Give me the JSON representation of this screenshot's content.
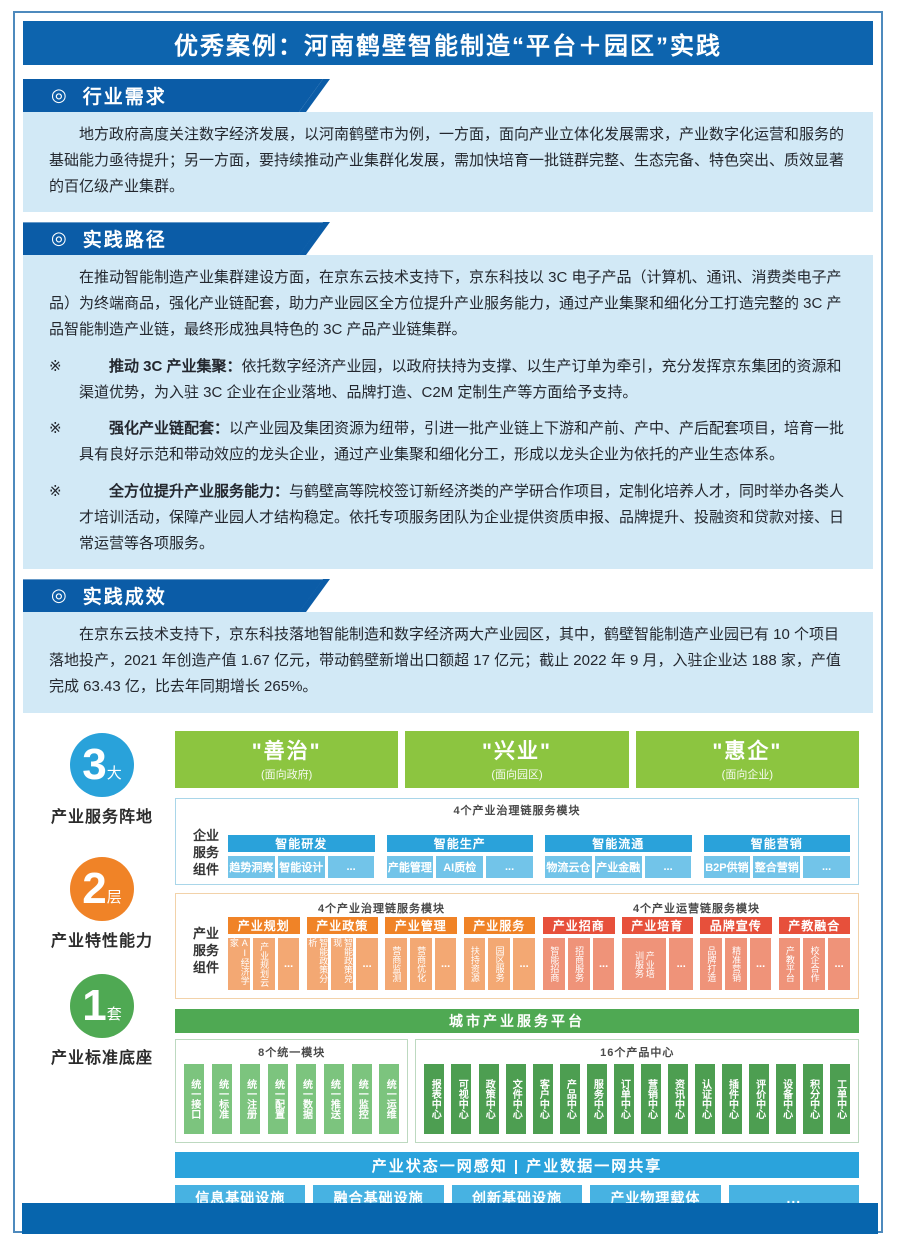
{
  "page": {
    "title": "优秀案例：河南鹤壁智能制造“平台＋园区”实践"
  },
  "ui": {
    "section_icon": "◎",
    "bullet_mark": "※"
  },
  "colors": {
    "banner_blue": "#0d64ae",
    "tab_blue": "#0b5ca7",
    "panel_light_blue": "#d2e9f6",
    "green_pillar": "#8cc540",
    "blue_header": "#2aa2da",
    "blue_item": "#72c4e9",
    "orange_header": "#f08327",
    "orange_item": "#f3a873",
    "red_header": "#e7503b",
    "red_item": "#ef9379",
    "platform_green": "#4fa953",
    "module_green_light": "#7cc47e",
    "module_green_dark": "#4d9e51",
    "network_blue": "#2aa3dc",
    "infra_blue": "#47b2e2",
    "footer_blue": "#0765ad"
  },
  "sections": [
    {
      "heading": "行业需求",
      "paragraphs": [
        "地方政府高度关注数字经济发展，以河南鹤壁市为例，一方面，面向产业立体化发展需求，产业数字化运营和服务的基础能力亟待提升；另一方面，要持续推动产业集群化发展，需加快培育一批链群完整、生态完备、特色突出、质效显著的百亿级产业集群。"
      ]
    },
    {
      "heading": "实践路径",
      "intro": "在推动智能制造产业集群建设方面，在京东云技术支持下，京东科技以 3C 电子产品（计算机、通讯、消费类电子产品）为终端商品，强化产业链配套，助力产业园区全方位提升产业服务能力，通过产业集聚和细化分工打造完整的 3C 产品智能制造产业链，最终形成独具特色的 3C 产品产业链集群。",
      "bullets": [
        {
          "lead": "推动 3C 产业集聚：",
          "text": "依托数字经济产业园，以政府扶持为支撑、以生产订单为牵引，充分发挥京东集团的资源和渠道优势，为入驻 3C 企业在企业落地、品牌打造、C2M 定制生产等方面给予支持。"
        },
        {
          "lead": "强化产业链配套：",
          "text": "以产业园及集团资源为纽带，引进一批产业链上下游和产前、产中、产后配套项目，培育一批具有良好示范和带动效应的龙头企业，通过产业集聚和细化分工，形成以龙头企业为依托的产业生态体系。"
        },
        {
          "lead": "全方位提升产业服务能力：",
          "text": "与鹤壁高等院校签订新经济类的产学研合作项目，定制化培养人才，同时举办各类人才培训活动，保障产业园人才结构稳定。依托专项服务团队为企业提供资质申报、品牌提升、投融资和贷款对接、日常运营等各项服务。"
        }
      ]
    },
    {
      "heading": "实践成效",
      "paragraphs": [
        "在京东云技术支持下，京东科技落地智能制造和数字经济两大产业园区，其中，鹤壁智能制造产业园已有 10 个项目落地投产，2021 年创造产值 1.67 亿元，带动鹤壁新增出口额超 17 亿元；截止 2022 年 9 月，入驻企业达 188 家，产值完成 63.43 亿，比去年同期增长 265%。"
      ]
    }
  ],
  "diagram": {
    "badges": [
      {
        "number": "3",
        "unit": "大",
        "label": "产业服务阵地",
        "color": "#29a2da"
      },
      {
        "number": "2",
        "unit": "层",
        "label": "产业特性能力",
        "color": "#f08327"
      },
      {
        "number": "1",
        "unit": "套",
        "label": "产业标准底座",
        "color": "#4fa953"
      }
    ],
    "top_boxes": [
      {
        "title": "\"善治\"",
        "subtitle": "(面向政府)"
      },
      {
        "title": "\"兴业\"",
        "subtitle": "(面向园区)"
      },
      {
        "title": "\"惠企\"",
        "subtitle": "(面向企业)"
      }
    ],
    "enterprise_row": {
      "label": "企业\n服务\n组件",
      "title": "4个产业治理链服务模块",
      "groups": [
        {
          "header": "智能研发",
          "items": [
            "趋势洞察",
            "智能设计",
            "..."
          ]
        },
        {
          "header": "智能生产",
          "items": [
            "产能管理",
            "AI质检",
            "..."
          ]
        },
        {
          "header": "智能流通",
          "items": [
            "物流云仓",
            "产业金融",
            "..."
          ]
        },
        {
          "header": "智能营销",
          "items": [
            "B2P供销",
            "整合营销",
            "..."
          ]
        }
      ]
    },
    "industry_row": {
      "label": "产业\n服务\n组件",
      "left_title": "4个产业治理链服务模块",
      "right_title": "4个产业运营链服务模块",
      "left_groups": [
        {
          "header": "产业规划",
          "items": [
            "AI经济学家",
            "产业规划云",
            "..."
          ]
        },
        {
          "header": "产业政策",
          "items": [
            "智能政策分析",
            "智能政策兑现",
            "..."
          ]
        },
        {
          "header": "产业管理",
          "items": [
            "营商监测",
            "营商优化",
            "..."
          ]
        },
        {
          "header": "产业服务",
          "items": [
            "扶持资源",
            "园区服务",
            "..."
          ]
        }
      ],
      "right_groups": [
        {
          "header": "产业招商",
          "items": [
            "智能招商",
            "招商服务",
            "..."
          ]
        },
        {
          "header": "产业培育",
          "items": [
            "产业培\n训服务",
            "..."
          ]
        },
        {
          "header": "品牌宣传",
          "items": [
            "品牌打造",
            "精准营销",
            "..."
          ]
        },
        {
          "header": "产教融合",
          "items": [
            "产教平台",
            "校企合作",
            "..."
          ]
        }
      ]
    },
    "platform_bar": "城市产业服务平台",
    "unified_modules": {
      "title": "8个统一模块",
      "items": [
        "统一接口",
        "统一标准",
        "统一注册",
        "统一配置",
        "统一数据",
        "统一推送",
        "统一监控",
        "统一运维"
      ]
    },
    "product_centers": {
      "title": "16个产品中心",
      "items": [
        "报表中心",
        "可视中心",
        "政策中心",
        "文件中心",
        "客户中心",
        "产品中心",
        "服务中心",
        "订单中心",
        "营销中心",
        "资讯中心",
        "认证中心",
        "插件中心",
        "评价中心",
        "设备中心",
        "积分中心",
        "工单中心"
      ]
    },
    "network_bar": "产业状态一网感知 | 产业数据一网共享",
    "infrastructure": [
      "信息基础设施",
      "融合基础设施",
      "创新基础设施",
      "产业物理载体",
      "..."
    ]
  }
}
